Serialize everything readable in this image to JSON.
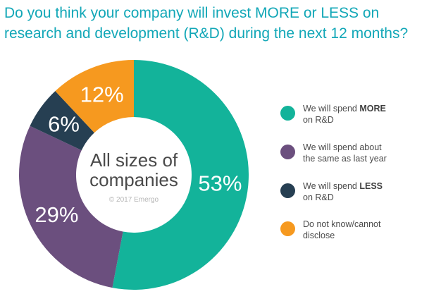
{
  "title": {
    "line1": "Do you think your company will invest MORE or LESS on",
    "line2": "research and development (R&D) during the next 12 months?"
  },
  "chart_data": {
    "type": "pie",
    "variant": "donut",
    "center_label": [
      "All sizes of",
      "companies"
    ],
    "watermark": "© 2017 Emergo",
    "value_suffix": "%",
    "slices": [
      {
        "label": "We will spend MORE on R&D",
        "value": 53,
        "color": "#13b39a"
      },
      {
        "label": "We will spend about the same as last year",
        "value": 29,
        "color": "#6b4f7e"
      },
      {
        "label": "We will spend LESS on R&D",
        "value": 6,
        "color": "#263f52"
      },
      {
        "label": "Do not know/cannot disclose",
        "value": 12,
        "color": "#f6991f"
      }
    ]
  },
  "legend": {
    "items": [
      {
        "pre": "We will spend ",
        "bold": "MORE",
        "line2": "on R&D",
        "color": "#13b39a"
      },
      {
        "pre": "We will spend about",
        "bold": "",
        "line2": "the same as last year",
        "color": "#6b4f7e"
      },
      {
        "pre": "We will spend ",
        "bold": "LESS",
        "line2": "on R&D",
        "color": "#263f52"
      },
      {
        "pre": "Do not know/cannot",
        "bold": "",
        "line2": "disclose",
        "color": "#f6991f"
      }
    ]
  }
}
